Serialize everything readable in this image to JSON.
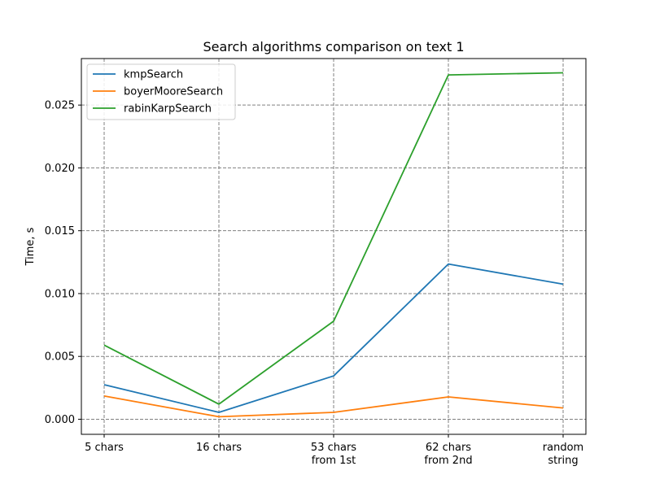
{
  "chart_data": {
    "type": "line",
    "title": "Search algorithms comparison on text 1",
    "xlabel": "",
    "ylabel": "Time, s",
    "categories": [
      "5 chars",
      "16 chars",
      "53 chars\nfrom 1st",
      "62 chars\nfrom 2nd",
      "random\nstring"
    ],
    "ylim": [
      -0.0012,
      0.0287
    ],
    "yticks": [
      0.0,
      0.005,
      0.01,
      0.015,
      0.02,
      0.025
    ],
    "ytick_labels": [
      "0.000",
      "0.005",
      "0.010",
      "0.015",
      "0.020",
      "0.025"
    ],
    "grid": true,
    "legend_position": "upper-left",
    "series": [
      {
        "name": "kmpSearch",
        "color": "#1f77b4",
        "values": [
          0.00275,
          0.00055,
          0.00345,
          0.01235,
          0.01075
        ]
      },
      {
        "name": "boyerMooreSearch",
        "color": "#ff7f0e",
        "values": [
          0.00185,
          0.0002,
          0.00055,
          0.00178,
          0.0009
        ]
      },
      {
        "name": "rabinKarpSearch",
        "color": "#2ca02c",
        "values": [
          0.0059,
          0.0012,
          0.0078,
          0.0274,
          0.02757
        ]
      }
    ]
  }
}
